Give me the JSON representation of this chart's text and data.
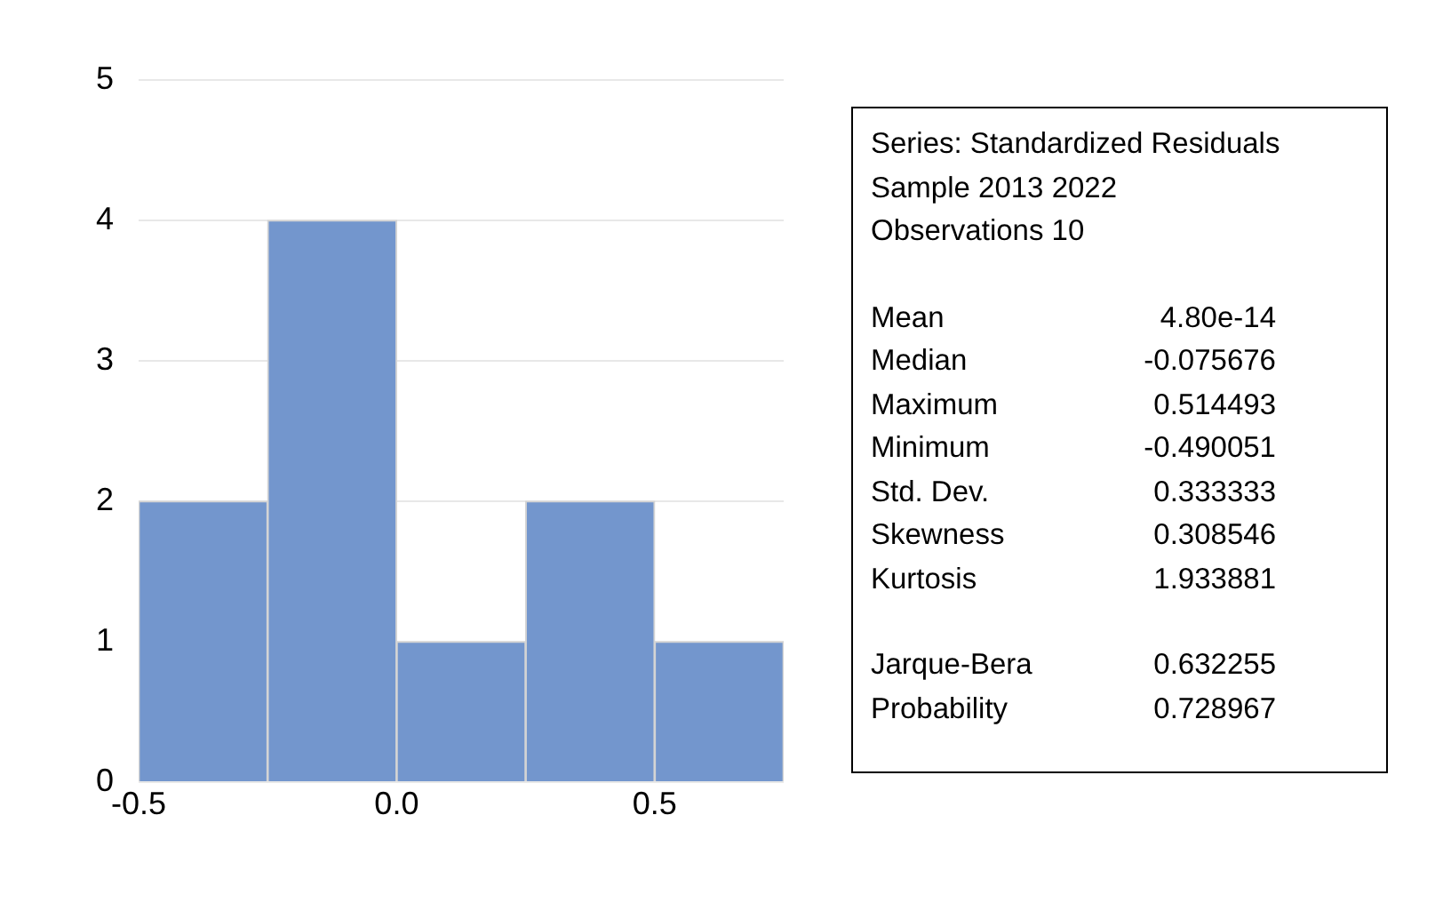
{
  "chart_data": {
    "type": "histogram",
    "bins": [
      -0.5,
      -0.25,
      0,
      0.25,
      0.5,
      0.75
    ],
    "values": [
      2,
      4,
      1,
      2,
      1
    ],
    "color": "#7396cd",
    "xlim": [
      -0.5,
      0.75
    ],
    "xticks": [
      -0.5,
      {
        "value": 0,
        "label": "0.0"
      },
      0.5
    ],
    "ylim": [
      0,
      5
    ],
    "yticks": [
      0,
      1,
      2,
      3,
      4,
      5
    ],
    "grid": "y",
    "legend": false,
    "annotations": [
      "Series: Standardized Residuals",
      "Sample 2013 2022",
      "Observations 10",
      "Mean",
      "4.80e-14",
      "Median",
      "-0.075676",
      "Maximum",
      "0.514493",
      "Minimum",
      "-0.490051",
      "Std. Dev.",
      "0.333333",
      "Skewness",
      "0.308546",
      "Kurtosis",
      "1.933881",
      "Jarque-Bera",
      "0.632255",
      "Probability",
      "0.728967"
    ]
  }
}
